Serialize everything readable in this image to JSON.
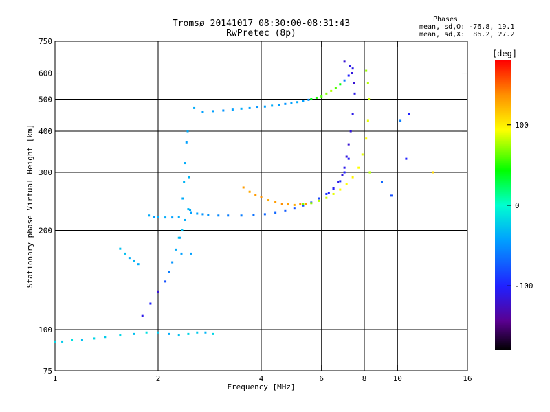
{
  "chart_data": {
    "type": "scatter",
    "title": "Tromsø 20141017 08:30:00-08:31:43",
    "subtitle": "RwPretec (8p)",
    "stats": {
      "title": "Phases",
      "line1": "mean, sd,O: -76.8, 19.1",
      "line2": "mean, sd,X:  86.2, 27.2"
    },
    "xlabel": "Frequency [MHz]",
    "ylabel": "Stationary phase Virtual Height [km]",
    "xscale": "log",
    "yscale": "log",
    "xlim": [
      1,
      16
    ],
    "ylim": [
      75,
      750
    ],
    "xticks": [
      1,
      2,
      4,
      6,
      8,
      10,
      16
    ],
    "yticks": [
      75,
      100,
      200,
      300,
      400,
      500,
      600,
      750
    ],
    "x_gridlines": [
      2,
      4,
      6,
      8,
      10
    ],
    "y_gridlines": [
      100,
      200,
      300,
      400,
      500,
      600
    ],
    "colorbar": {
      "label": "[deg]",
      "range": [
        -180,
        180
      ],
      "ticks": [
        100,
        0,
        -100
      ]
    },
    "series": [
      {
        "x": [
          1.0,
          1.05,
          1.12,
          1.2,
          1.3,
          1.4,
          1.55,
          1.7,
          1.85,
          2.0,
          2.15,
          2.3,
          2.45,
          2.6,
          2.75,
          2.9
        ],
        "y": [
          92,
          92,
          93,
          93,
          94,
          95,
          96,
          97,
          98,
          98,
          97,
          96,
          97,
          98,
          98,
          97
        ],
        "phase": [
          -20,
          -25,
          -15,
          -30,
          -20,
          -25,
          -20,
          -30,
          -15,
          -25,
          -40,
          -30,
          -20,
          -25,
          -35,
          -20
        ]
      },
      {
        "x": [
          1.55,
          1.6,
          1.65,
          1.7,
          1.75,
          1.8,
          1.9,
          2.0,
          2.1,
          2.15,
          2.2,
          2.25,
          2.3,
          2.35,
          2.4,
          2.45
        ],
        "y": [
          176,
          170,
          165,
          162,
          158,
          110,
          120,
          130,
          140,
          150,
          160,
          175,
          190,
          200,
          215,
          232
        ],
        "phase": [
          -30,
          -30,
          -40,
          -35,
          -40,
          -110,
          -100,
          -120,
          -80,
          -60,
          -50,
          -40,
          -30,
          -30,
          -40,
          -35
        ]
      },
      {
        "x": [
          1.88,
          1.95,
          2.0,
          2.1,
          2.2,
          2.3,
          2.32,
          2.34,
          2.36,
          2.38,
          2.4,
          2.42,
          2.44,
          2.46,
          2.48,
          2.5
        ],
        "y": [
          222,
          220,
          220,
          219,
          219,
          220,
          190,
          170,
          250,
          280,
          320,
          370,
          400,
          290,
          230,
          170
        ],
        "phase": [
          -40,
          -45,
          -40,
          -40,
          -45,
          -40,
          -40,
          -45,
          -40,
          -35,
          -40,
          -45,
          -40,
          -35,
          -40,
          -45
        ]
      },
      {
        "x": [
          2.5,
          2.6,
          2.7,
          2.8,
          3.0,
          3.2,
          3.5,
          3.8,
          4.1,
          4.4,
          4.7,
          5.0,
          5.3,
          5.6,
          5.9,
          6.2,
          6.5,
          6.8,
          7.0,
          7.2
        ],
        "y": [
          226,
          225,
          224,
          223,
          222,
          222,
          222,
          223,
          224,
          226,
          229,
          233,
          238,
          243,
          250,
          258,
          268,
          282,
          300,
          330
        ],
        "phase": [
          -45,
          -45,
          -50,
          -50,
          -55,
          -60,
          -60,
          -65,
          -70,
          -70,
          -75,
          -80,
          -80,
          -85,
          -85,
          -90,
          -95,
          -95,
          -100,
          -105
        ]
      },
      {
        "x": [
          6.3,
          6.5,
          6.7,
          6.9,
          7.0,
          7.1,
          7.2,
          7.3,
          7.4,
          7.5,
          7.45,
          7.35,
          7.25,
          7.0
        ],
        "y": [
          260,
          268,
          280,
          295,
          310,
          335,
          365,
          400,
          450,
          520,
          560,
          600,
          630,
          650
        ],
        "phase": [
          -100,
          -105,
          -110,
          -115,
          -110,
          -115,
          -120,
          -115,
          -110,
          -110,
          -120,
          -115,
          -110,
          -120
        ]
      },
      {
        "x": [
          3.55,
          3.7,
          3.85,
          4.0,
          4.2,
          4.4,
          4.6,
          4.8,
          5.0,
          5.2,
          5.4
        ],
        "y": [
          270,
          262,
          256,
          252,
          247,
          244,
          241,
          240,
          239,
          240,
          241
        ],
        "phase": [
          135,
          130,
          135,
          140,
          130,
          135,
          140,
          135,
          130,
          140,
          135
        ]
      },
      {
        "x": [
          5.3,
          5.6,
          5.9,
          6.2,
          6.5,
          6.8,
          7.1,
          7.4,
          7.7,
          7.9,
          8.1,
          8.2,
          8.25,
          8.2,
          8.1
        ],
        "y": [
          240,
          242,
          246,
          251,
          258,
          266,
          276,
          290,
          310,
          340,
          380,
          430,
          500,
          560,
          610
        ],
        "phase": [
          70,
          75,
          80,
          85,
          90,
          95,
          95,
          100,
          95,
          90,
          95,
          90,
          85,
          80,
          75
        ]
      },
      {
        "x": [
          2.55,
          2.7,
          2.9,
          3.1,
          3.3,
          3.5,
          3.7,
          3.9,
          4.1,
          4.3,
          4.5,
          4.7,
          4.9,
          5.1,
          5.3,
          5.5
        ],
        "y": [
          470,
          458,
          460,
          462,
          465,
          468,
          470,
          472,
          475,
          478,
          480,
          484,
          487,
          490,
          494,
          498
        ],
        "phase": [
          -40,
          -45,
          -45,
          -50,
          -45,
          -40,
          -45,
          -50,
          -45,
          -40,
          -45,
          -50,
          -45,
          -40,
          -45,
          -50
        ]
      },
      {
        "x": [
          5.6,
          5.8,
          6.0,
          6.2,
          6.4,
          6.6,
          6.8,
          7.0,
          7.2,
          7.4
        ],
        "y": [
          500,
          505,
          510,
          520,
          530,
          540,
          555,
          570,
          590,
          620
        ],
        "phase": [
          40,
          50,
          60,
          70,
          80,
          60,
          40,
          -60,
          -100,
          -110
        ]
      },
      {
        "x": [
          8.3,
          9.0,
          9.6,
          10.2,
          10.6,
          10.8,
          12.7
        ],
        "y": [
          300,
          280,
          255,
          430,
          330,
          450,
          300
        ],
        "phase": [
          80,
          -70,
          -80,
          -60,
          -100,
          -100,
          110
        ]
      }
    ]
  }
}
